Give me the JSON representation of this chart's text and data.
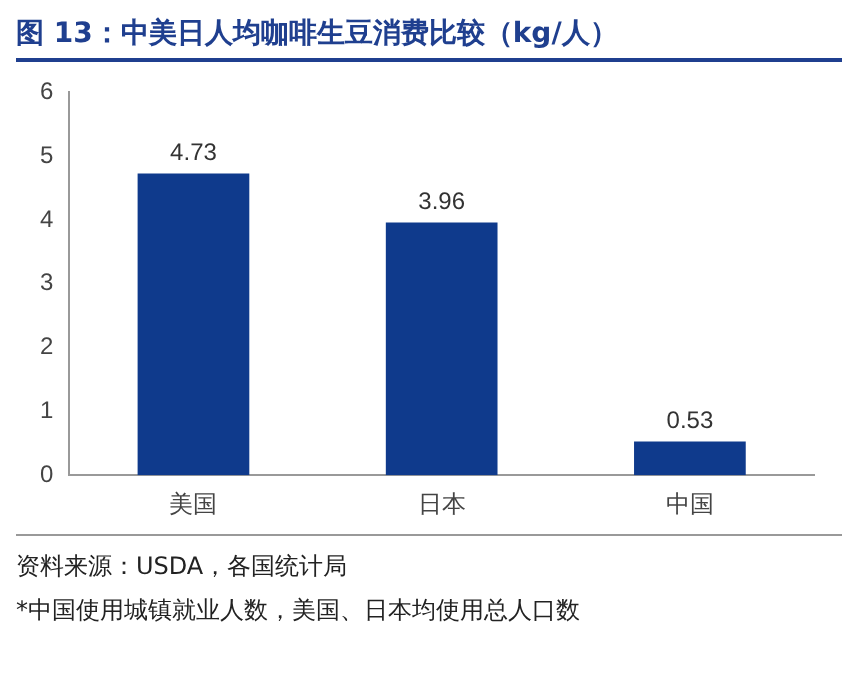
{
  "chart_data": {
    "type": "bar",
    "title": "图 13：中美日人均咖啡生豆消费比较（kg/人）",
    "categories": [
      "美国",
      "日本",
      "中国"
    ],
    "values": [
      4.73,
      3.96,
      0.53
    ],
    "color": "#0f3a8c",
    "ylim": [
      0,
      6
    ],
    "yticks": [
      0,
      1,
      2,
      3,
      4,
      5,
      6
    ],
    "grid": false,
    "legend": false,
    "data_labels": true,
    "annotations": [
      "资料来源：USDA，各国统计局",
      "*中国使用城镇就业人数，美国、日本均使用总人口数"
    ]
  }
}
